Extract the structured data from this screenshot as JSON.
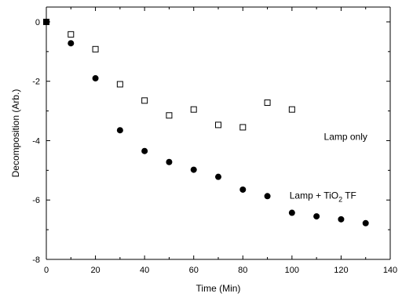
{
  "chart_data": {
    "type": "scatter",
    "xlabel": "Time (Min)",
    "ylabel": "Decomposition (Arb.)",
    "xlim": [
      0,
      140
    ],
    "ylim": [
      -8,
      0.5
    ],
    "xticks": [
      0,
      20,
      40,
      60,
      80,
      100,
      120,
      140
    ],
    "yticks": [
      0,
      -2,
      -4,
      -6,
      -8
    ],
    "grid": false,
    "legend": "none",
    "series": [
      {
        "marker": "open-square",
        "color": "#000000",
        "x": [
          0,
          10,
          20,
          30,
          40,
          50,
          60,
          70,
          80,
          90,
          100
        ],
        "y": [
          0,
          -0.42,
          -0.92,
          -2.1,
          -2.65,
          -3.15,
          -2.95,
          -3.47,
          -3.55,
          -2.72,
          -2.95
        ]
      },
      {
        "marker": "filled-circle",
        "color": "#000000",
        "x": [
          0,
          10,
          20,
          30,
          40,
          50,
          60,
          70,
          80,
          90,
          100,
          110,
          120,
          130
        ],
        "y": [
          0,
          -0.72,
          -1.9,
          -3.65,
          -4.35,
          -4.72,
          -4.98,
          -5.22,
          -5.65,
          -5.87,
          -6.43,
          -6.55,
          -6.65,
          -6.78
        ]
      }
    ],
    "annotations": [
      {
        "text": "Lamp only",
        "x": 113,
        "y": -3.98
      },
      {
        "text_main": "Lamp + TiO",
        "text_sub": "2",
        "text_tail": " TF",
        "x": 99,
        "y": -5.95
      }
    ]
  }
}
